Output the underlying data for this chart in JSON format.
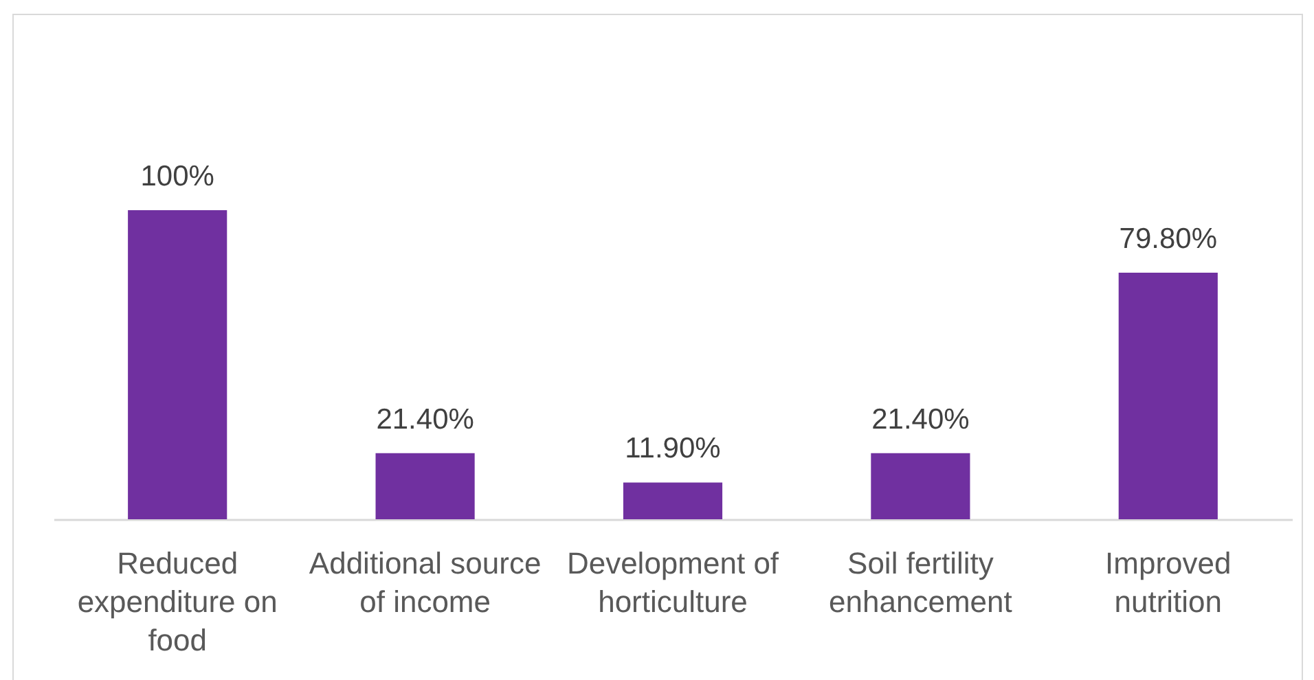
{
  "chart_data": {
    "type": "bar",
    "categories": [
      "Reduced expenditure on food",
      "Additional source of income",
      "Development of horticulture",
      "Soil fertility enhancement",
      "Improved nutrition"
    ],
    "values": [
      100,
      21.4,
      11.9,
      21.4,
      79.8
    ],
    "value_labels": [
      "100%",
      "21.40%",
      "11.90%",
      "21.40%",
      "79.80%"
    ],
    "color": "#7030a0",
    "tick_labels": "x"
  }
}
